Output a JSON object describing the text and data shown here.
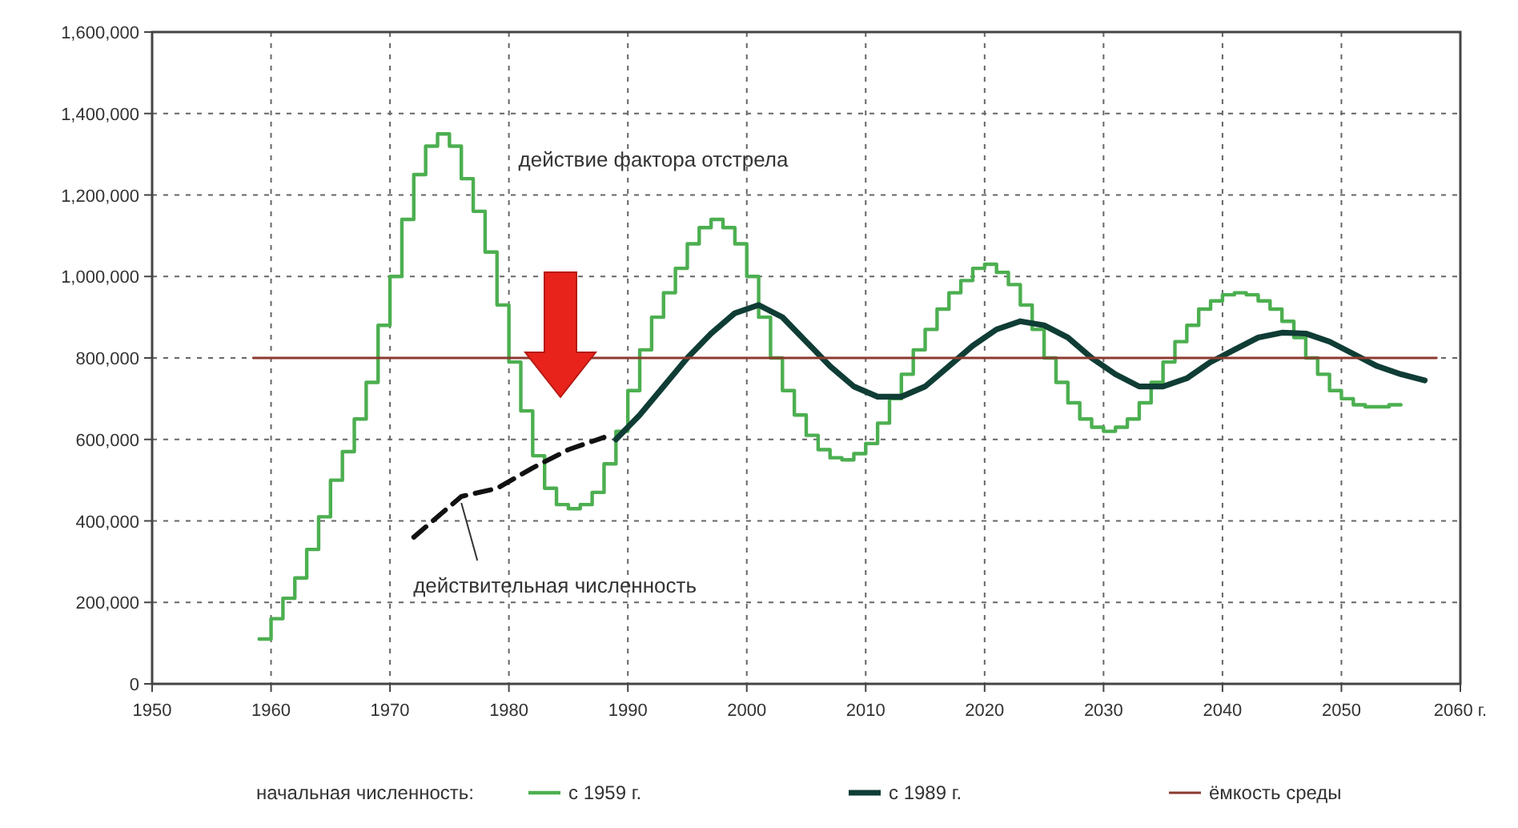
{
  "chart_data": {
    "type": "step",
    "legend_title": "начальная численность:",
    "legend": "bottom",
    "grid": true,
    "line_style": "solid",
    "xlim": [
      1950,
      2060
    ],
    "xticks": [
      1950,
      1960,
      1970,
      1980,
      1990,
      2000,
      2010,
      2020,
      2030,
      2040,
      2050,
      {
        "value": 2060,
        "label": "2060 г."
      }
    ],
    "ylim": [
      0,
      1600000
    ],
    "yticks": [
      {
        "value": 0,
        "label": "0"
      },
      {
        "value": 200000,
        "label": "200,000"
      },
      {
        "value": 400000,
        "label": "400,000"
      },
      {
        "value": 600000,
        "label": "600,000"
      },
      {
        "value": 800000,
        "label": "800,000"
      },
      {
        "value": 1000000,
        "label": "1,000,000"
      },
      {
        "value": 1200000,
        "label": "1,200,000"
      },
      {
        "value": 1400000,
        "label": "1,400,000"
      },
      {
        "value": 1600000,
        "label": "1,600,000"
      }
    ],
    "annotations": [
      "действие фактора отстрела"
    ],
    "series": [
      {
        "name": "с 1959 г.",
        "color": "#4caf50",
        "x": [
          1959,
          1960,
          1961,
          1962,
          1963,
          1964,
          1965,
          1966,
          1967,
          1968,
          1969,
          1970,
          1971,
          1972,
          1973,
          1974,
          1975,
          1976,
          1977,
          1978,
          1979,
          1980,
          1981,
          1982,
          1983,
          1984,
          1985,
          1986,
          1987,
          1988,
          1989,
          1990,
          1991,
          1992,
          1993,
          1994,
          1995,
          1996,
          1997,
          1998,
          1999,
          2000,
          2001,
          2002,
          2003,
          2004,
          2005,
          2006,
          2007,
          2008,
          2009,
          2010,
          2011,
          2012,
          2013,
          2014,
          2015,
          2016,
          2017,
          2018,
          2019,
          2020,
          2021,
          2022,
          2023,
          2024,
          2025,
          2026,
          2027,
          2028,
          2029,
          2030,
          2031,
          2032,
          2033,
          2034,
          2035,
          2036,
          2037,
          2038,
          2039,
          2040,
          2041,
          2042,
          2043,
          2044,
          2045,
          2046,
          2047,
          2048,
          2049,
          2050,
          2051,
          2052,
          2053,
          2054,
          2055
        ],
        "values": [
          110000,
          160000,
          210000,
          260000,
          330000,
          410000,
          500000,
          570000,
          650000,
          740000,
          880000,
          1000000,
          1140000,
          1250000,
          1320000,
          1350000,
          1320000,
          1240000,
          1160000,
          1060000,
          930000,
          790000,
          670000,
          560000,
          480000,
          440000,
          430000,
          440000,
          470000,
          540000,
          620000,
          720000,
          820000,
          900000,
          960000,
          1020000,
          1080000,
          1120000,
          1140000,
          1120000,
          1080000,
          1000000,
          900000,
          800000,
          720000,
          660000,
          610000,
          575000,
          555000,
          550000,
          565000,
          590000,
          640000,
          700000,
          760000,
          820000,
          870000,
          920000,
          960000,
          990000,
          1020000,
          1030000,
          1010000,
          980000,
          930000,
          870000,
          800000,
          740000,
          690000,
          650000,
          630000,
          620000,
          630000,
          650000,
          690000,
          740000,
          790000,
          840000,
          880000,
          920000,
          940000,
          955000,
          960000,
          955000,
          940000,
          920000,
          890000,
          850000,
          800000,
          760000,
          720000,
          700000,
          685000,
          680000,
          680000,
          685000,
          685000
        ]
      },
      {
        "name": "с 1989 г.",
        "color": "#0f3d35",
        "type": "line",
        "x": [
          1989,
          1991,
          1993,
          1995,
          1997,
          1999,
          2001,
          2003,
          2005,
          2007,
          2009,
          2011,
          2013,
          2015,
          2017,
          2019,
          2021,
          2023,
          2025,
          2027,
          2029,
          2031,
          2033,
          2035,
          2037,
          2039,
          2041,
          2043,
          2045,
          2047,
          2049,
          2051,
          2053,
          2055,
          2057
        ],
        "values": [
          600000,
          660000,
          730000,
          800000,
          860000,
          910000,
          930000,
          900000,
          840000,
          780000,
          730000,
          705000,
          705000,
          730000,
          780000,
          830000,
          870000,
          890000,
          880000,
          850000,
          800000,
          760000,
          730000,
          730000,
          750000,
          790000,
          820000,
          850000,
          862000,
          860000,
          840000,
          810000,
          780000,
          760000,
          745000
        ]
      },
      {
        "name": "ёмкость среды",
        "color": "#8b3a2f",
        "type": "line",
        "x": [
          1958.5,
          2058
        ],
        "values": [
          800000,
          800000
        ]
      },
      {
        "name": "действительная численность",
        "color": "#111111",
        "type": "line",
        "line_style": "dashed",
        "x": [
          1972,
          1976,
          1979,
          1982,
          1985,
          1988
        ],
        "values": [
          360000,
          460000,
          480000,
          530000,
          575000,
          605000
        ]
      }
    ]
  }
}
